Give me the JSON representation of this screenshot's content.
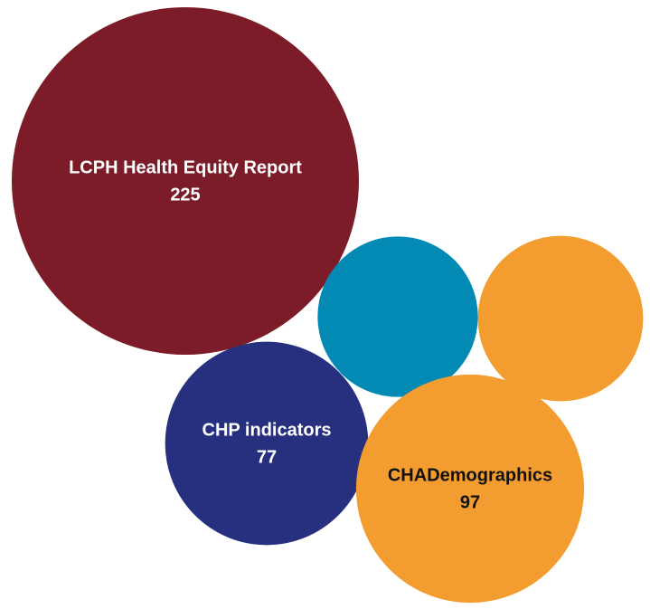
{
  "chart_data": {
    "type": "bubble",
    "bubbles": [
      {
        "name": "LCPH Health Equity Report",
        "value": 225,
        "color": "#7b1c28",
        "label_color": "#ffffff"
      },
      {
        "name": null,
        "value": 48,
        "color": "#0289b4",
        "label_color": "#ffffff"
      },
      {
        "name": null,
        "value": 51,
        "color": "#f39c2f",
        "label_color": "#ffffff"
      },
      {
        "name": "CHP indicators",
        "value": 77,
        "color": "#26307f",
        "label_color": "#ffffff"
      },
      {
        "name": "CHADemographics",
        "value": 97,
        "color": "#f39c2f",
        "label_color": "#111111"
      }
    ]
  }
}
